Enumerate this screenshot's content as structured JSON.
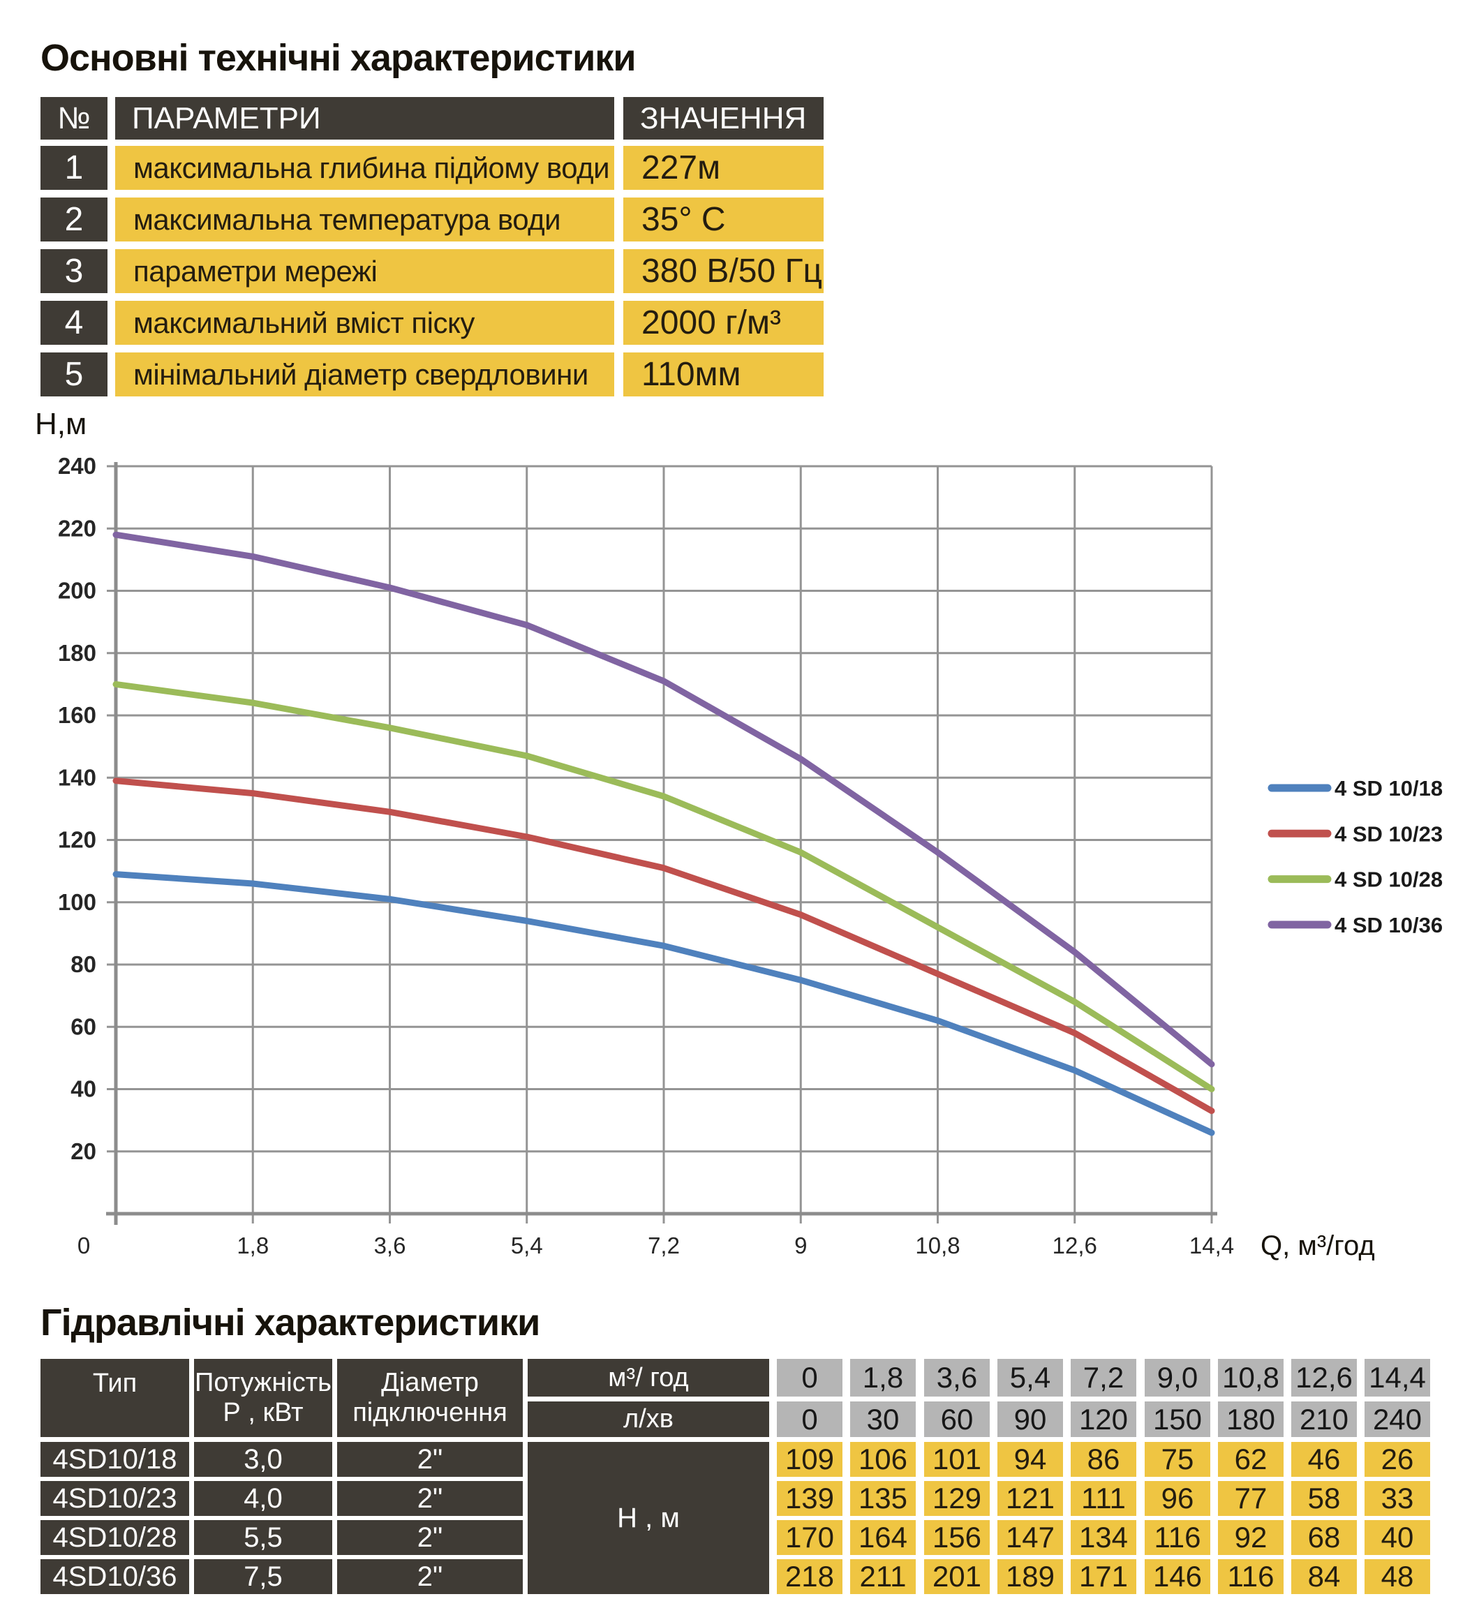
{
  "colors": {
    "dark": "#3f3b35",
    "yellow": "#efc542",
    "grey": "#b5b5b5",
    "grid": "#949494",
    "axis": "#8c8c8c",
    "chart_text": "#262626"
  },
  "title1": "Основні технічні характеристики",
  "spec_table": {
    "headers": {
      "num": "№",
      "param": "ПАРАМЕТРИ",
      "value": "ЗНАЧЕННЯ"
    },
    "rows": [
      {
        "num": "1",
        "param": "максимальна глибина підйому води",
        "value": "227м"
      },
      {
        "num": "2",
        "param": "максимальна температура води",
        "value": "35° C"
      },
      {
        "num": "3",
        "param": "параметри мережі",
        "value": "380 В/50 Гц"
      },
      {
        "num": "4",
        "param": "максимальний вміст піску",
        "value": "2000 г/м³"
      },
      {
        "num": "5",
        "param": "мінімальний діаметр свердловини",
        "value": "110мм"
      }
    ]
  },
  "chart_data": {
    "type": "line",
    "ylabel": "Н,м",
    "xlabel": "Q,  м³/год",
    "xlim": [
      0,
      14.4
    ],
    "ylim": [
      0,
      240
    ],
    "ytick_step": 20,
    "grid": true,
    "legend_position": "right",
    "x": [
      0,
      1.8,
      3.6,
      5.4,
      7.2,
      9,
      10.8,
      12.6,
      14.4
    ],
    "xtick_labels": [
      "0",
      "1,8",
      "3,6",
      "5,4",
      "7,2",
      "9",
      "10,8",
      "12,6",
      "14,4"
    ],
    "series": [
      {
        "name": "4 SD 10/18",
        "color": "#4F81BD",
        "values": [
          109,
          106,
          101,
          94,
          86,
          75,
          62,
          46,
          26
        ]
      },
      {
        "name": "4 SD 10/23",
        "color": "#C0504D",
        "values": [
          139,
          135,
          129,
          121,
          111,
          96,
          77,
          58,
          33
        ]
      },
      {
        "name": "4 SD 10/28",
        "color": "#9BBB59",
        "values": [
          170,
          164,
          156,
          147,
          134,
          116,
          92,
          68,
          40
        ]
      },
      {
        "name": "4 SD 10/36",
        "color": "#8064A2",
        "values": [
          218,
          211,
          201,
          189,
          171,
          146,
          116,
          84,
          48
        ]
      }
    ]
  },
  "title2": "Гідравлічні характеристики",
  "hydraulic_table": {
    "headers": {
      "type": "Тип",
      "power_line1": "Потужність",
      "power_line2": "Р , кВт",
      "diameter_line1": "Діаметр",
      "diameter_line2": "підключення",
      "flow_m3": "м³/ год",
      "flow_lmin": "л/хв",
      "head": "Н , м"
    },
    "flow_m3_values": [
      "0",
      "1,8",
      "3,6",
      "5,4",
      "7,2",
      "9,0",
      "10,8",
      "12,6",
      "14,4"
    ],
    "flow_lmin_values": [
      "0",
      "30",
      "60",
      "90",
      "120",
      "150",
      "180",
      "210",
      "240"
    ],
    "rows": [
      {
        "type": "4SD10/18",
        "power": "3,0",
        "diameter": "2\"",
        "heads": [
          "109",
          "106",
          "101",
          "94",
          "86",
          "75",
          "62",
          "46",
          "26"
        ]
      },
      {
        "type": "4SD10/23",
        "power": "4,0",
        "diameter": "2\"",
        "heads": [
          "139",
          "135",
          "129",
          "121",
          "111",
          "96",
          "77",
          "58",
          "33"
        ]
      },
      {
        "type": "4SD10/28",
        "power": "5,5",
        "diameter": "2\"",
        "heads": [
          "170",
          "164",
          "156",
          "147",
          "134",
          "116",
          "92",
          "68",
          "40"
        ]
      },
      {
        "type": "4SD10/36",
        "power": "7,5",
        "diameter": "2\"",
        "heads": [
          "218",
          "211",
          "201",
          "189",
          "171",
          "146",
          "116",
          "84",
          "48"
        ]
      }
    ]
  }
}
